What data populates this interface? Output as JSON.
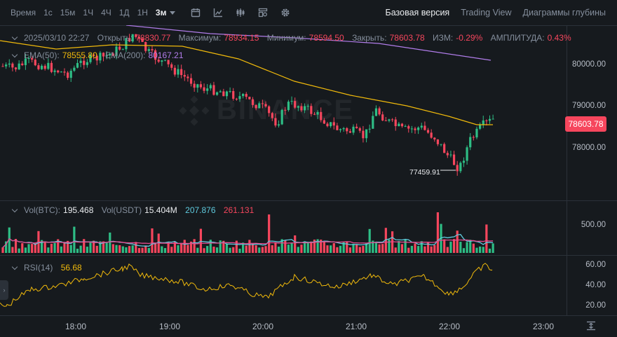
{
  "toolbar": {
    "timeframes": [
      "Время",
      "1с",
      "15м",
      "1Ч",
      "4Ч",
      "1Д",
      "1Н"
    ],
    "active_timeframe": "3м",
    "views": [
      "Базовая версия",
      "Trading View",
      "Диаграммы глубины"
    ],
    "active_view": "Базовая версия"
  },
  "ohlc": {
    "date": "2025/03/10 22:27",
    "open_label": "Открыть:",
    "open": "78830.77",
    "high_label": "Максимум:",
    "high": "78934.15",
    "low_label": "Минимум:",
    "low": "78594.50",
    "close_label": "Закрыть:",
    "close": "78603.78",
    "change_label": "ИЗМ:",
    "change": "-0.29%",
    "amplitude_label": "АМПЛИТУДА:",
    "amplitude": "0.43%"
  },
  "ema": {
    "ema50_label": "EMA(50):",
    "ema50": "78555.80",
    "ema200_label": "EMA(200):",
    "ema200": "80167.21"
  },
  "volume": {
    "btc_label": "Vol(BTC):",
    "btc": "195.468",
    "usdt_label": "Vol(USDT)",
    "usdt": "15.404M",
    "ma1": "207.876",
    "ma2": "261.131"
  },
  "rsi": {
    "label": "RSI(14)",
    "value": "56.68"
  },
  "price_axis": [
    "80000.00",
    "79000.00",
    "78000.00"
  ],
  "volume_axis": [
    "500.00"
  ],
  "rsi_axis": [
    "60.00",
    "40.00",
    "20.00"
  ],
  "last_price": "78603.78",
  "min_marker": "77459.91",
  "time_axis": [
    "18:00",
    "19:00",
    "20:00",
    "21:00",
    "22:00",
    "23:00"
  ],
  "watermark": "BINANCE",
  "colors": {
    "up": "#2ebd85",
    "down": "#f6465d",
    "ema50": "#f0b90b",
    "ema200": "#b17dea",
    "rsi": "#f0b90b",
    "vol_ma1": "#5fcade",
    "vol_ma2": "#e44b8e"
  }
}
